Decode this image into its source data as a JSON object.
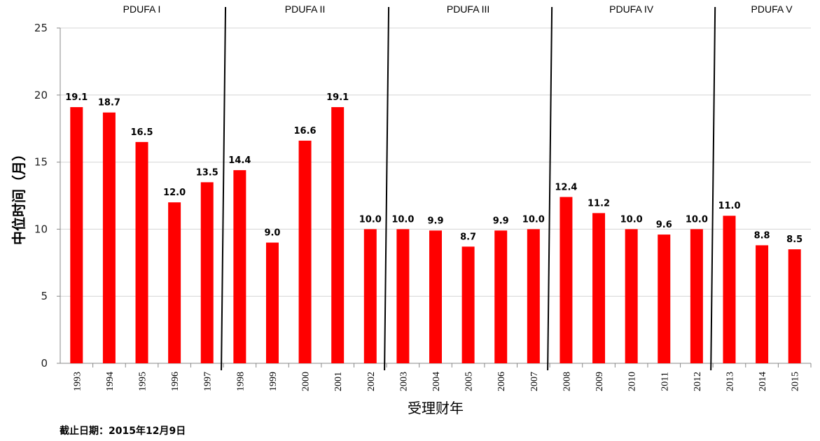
{
  "chart_data": {
    "type": "bar",
    "categories": [
      "1993",
      "1994",
      "1995",
      "1996",
      "1997",
      "1998",
      "1999",
      "2000",
      "2001",
      "2002",
      "2003",
      "2004",
      "2005",
      "2006",
      "2007",
      "2008",
      "2009",
      "2010",
      "2011",
      "2012",
      "2013",
      "2014",
      "2015"
    ],
    "values": [
      19.1,
      18.7,
      16.5,
      12.0,
      13.5,
      14.4,
      9.0,
      16.6,
      19.1,
      10.0,
      10.0,
      9.9,
      8.7,
      9.9,
      10.0,
      12.4,
      11.2,
      10.0,
      9.6,
      10.0,
      11.0,
      8.8,
      8.5
    ],
    "data_labels": [
      "19.1",
      "18.7",
      "16.5",
      "12.0",
      "13.5",
      "14.4",
      "9.0",
      "16.6",
      "19.1",
      "10.0",
      "10.0",
      "9.9",
      "8.7",
      "9.9",
      "10.0",
      "12.4",
      "11.2",
      "10.0",
      "9.6",
      "10.0",
      "11.0",
      "8.8",
      "8.5"
    ],
    "xlabel": "受理财年",
    "ylabel": "中位时间（月）",
    "ylim": [
      0,
      25
    ],
    "yticks": [
      0,
      5,
      10,
      15,
      20,
      25
    ],
    "grid": true,
    "bar_color": "#ff0000",
    "periods": [
      {
        "label": "PDUFA I",
        "start": "1993",
        "end": "1997"
      },
      {
        "label": "PDUFA II",
        "start": "1998",
        "end": "2002"
      },
      {
        "label": "PDUFA III",
        "start": "2003",
        "end": "2007"
      },
      {
        "label": "PDUFA IV",
        "start": "2008",
        "end": "2012"
      },
      {
        "label": "PDUFA V",
        "start": "2013",
        "end": "2015"
      }
    ]
  },
  "footnote": "截止日期：2015年12月9日"
}
